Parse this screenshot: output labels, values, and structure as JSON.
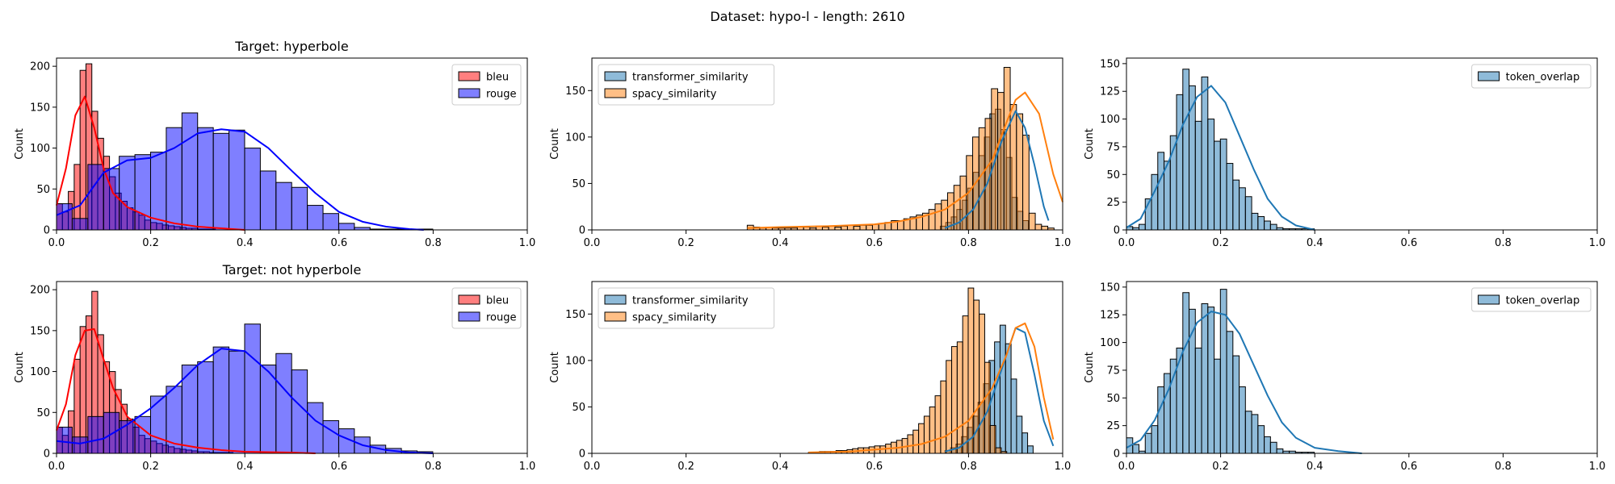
{
  "figure": {
    "suptitle": "Dataset: hypo-l - length: 2610"
  },
  "colors": {
    "bleu": "#ff0000",
    "rouge": "#0000ff",
    "transformer_similarity": "#1f77b4",
    "spacy_similarity": "#ff7f0e",
    "token_overlap": "#1f77b4"
  },
  "chart_data": [
    {
      "type": "histogram",
      "title": "Target: hyperbole",
      "ylabel": "Count",
      "xlim": [
        0,
        1
      ],
      "ylim": [
        0,
        210
      ],
      "xticks": [
        "0.0",
        "0.2",
        "0.4",
        "0.6",
        "0.8",
        "1.0"
      ],
      "yticks": [
        "0",
        "50",
        "100",
        "150",
        "200"
      ],
      "legend_position": "top-right",
      "kde": true,
      "series": [
        {
          "name": "bleu",
          "color_key": "bleu",
          "bin_start": 0.0,
          "bin_width": 0.0125,
          "counts": [
            32,
            22,
            47,
            80,
            195,
            203,
            145,
            112,
            90,
            65,
            45,
            35,
            27,
            22,
            18,
            12,
            9,
            8,
            6,
            5,
            4,
            3,
            2,
            2,
            1,
            1,
            1,
            0,
            0,
            0
          ],
          "kde_x": [
            0.0,
            0.02,
            0.04,
            0.06,
            0.08,
            0.1,
            0.12,
            0.15,
            0.2,
            0.25,
            0.3,
            0.35,
            0.4
          ],
          "kde_y": [
            30,
            75,
            140,
            163,
            125,
            75,
            45,
            28,
            15,
            8,
            4,
            2,
            0
          ]
        },
        {
          "name": "rouge",
          "color_key": "rouge",
          "bin_start": 0.0,
          "bin_width": 0.0333,
          "counts": [
            32,
            14,
            80,
            75,
            90,
            92,
            95,
            125,
            143,
            125,
            118,
            122,
            100,
            72,
            58,
            52,
            30,
            20,
            8,
            3,
            1,
            1,
            1,
            1
          ],
          "kde_x": [
            0.0,
            0.05,
            0.1,
            0.15,
            0.2,
            0.25,
            0.3,
            0.35,
            0.4,
            0.45,
            0.5,
            0.55,
            0.6,
            0.65,
            0.7,
            0.75,
            0.78
          ],
          "kde_y": [
            18,
            30,
            70,
            85,
            88,
            100,
            118,
            123,
            120,
            100,
            72,
            45,
            22,
            10,
            4,
            1,
            0
          ]
        }
      ]
    },
    {
      "type": "histogram",
      "title": "",
      "ylabel": "Count",
      "xlim": [
        0,
        1
      ],
      "ylim": [
        0,
        185
      ],
      "xticks": [
        "0.0",
        "0.2",
        "0.4",
        "0.6",
        "0.8",
        "1.0"
      ],
      "yticks": [
        "0",
        "50",
        "100",
        "150"
      ],
      "legend_position": "top-left",
      "kde": true,
      "series": [
        {
          "name": "transformer_similarity",
          "color_key": "transformer_similarity",
          "bin_start": 0.74,
          "bin_width": 0.0117,
          "counts": [
            4,
            8,
            14,
            22,
            32,
            45,
            62,
            80,
            100,
            125,
            130,
            108,
            78,
            35,
            20,
            10
          ],
          "kde_x": [
            0.75,
            0.78,
            0.81,
            0.84,
            0.87,
            0.9,
            0.92,
            0.94,
            0.96,
            0.97
          ],
          "kde_y": [
            2,
            8,
            22,
            50,
            95,
            128,
            110,
            70,
            25,
            10
          ]
        },
        {
          "name": "spacy_similarity",
          "color_key": "spacy_similarity",
          "bin_start": 0.33,
          "bin_width": 0.0133,
          "counts": [
            5,
            3,
            2,
            3,
            2,
            2,
            2,
            2,
            3,
            3,
            2,
            4,
            3,
            4,
            3,
            4,
            5,
            4,
            5,
            5,
            6,
            7,
            8,
            10,
            10,
            12,
            14,
            16,
            18,
            22,
            28,
            32,
            40,
            48,
            58,
            80,
            100,
            110,
            120,
            152,
            148,
            175,
            135,
            125,
            102,
            18,
            6,
            4,
            2
          ],
          "kde_x": [
            0.33,
            0.4,
            0.5,
            0.6,
            0.65,
            0.7,
            0.75,
            0.8,
            0.85,
            0.88,
            0.9,
            0.92,
            0.95,
            0.98,
            1.0
          ],
          "kde_y": [
            2,
            3,
            4,
            6,
            9,
            14,
            22,
            40,
            75,
            115,
            140,
            148,
            125,
            60,
            30
          ]
        }
      ]
    },
    {
      "type": "histogram",
      "title": "",
      "ylabel": "Count",
      "xlim": [
        0,
        1
      ],
      "ylim": [
        0,
        155
      ],
      "xticks": [
        "0.0",
        "0.2",
        "0.4",
        "0.6",
        "0.8",
        "1.0"
      ],
      "yticks": [
        "0",
        "25",
        "50",
        "75",
        "100",
        "125",
        "150"
      ],
      "legend_position": "top-right",
      "kde": true,
      "series": [
        {
          "name": "token_overlap",
          "color_key": "token_overlap",
          "bin_start": 0.0,
          "bin_width": 0.0133,
          "counts": [
            3,
            2,
            5,
            28,
            50,
            70,
            62,
            85,
            122,
            145,
            130,
            98,
            138,
            100,
            80,
            82,
            60,
            45,
            38,
            30,
            15,
            12,
            8,
            5,
            2,
            1,
            1,
            1,
            1,
            1
          ],
          "kde_x": [
            0.0,
            0.03,
            0.06,
            0.09,
            0.12,
            0.15,
            0.18,
            0.21,
            0.24,
            0.27,
            0.3,
            0.33,
            0.36,
            0.4
          ],
          "kde_y": [
            2,
            10,
            35,
            62,
            95,
            120,
            130,
            115,
            85,
            55,
            28,
            12,
            4,
            0
          ]
        }
      ]
    },
    {
      "type": "histogram",
      "title": "Target: not hyperbole",
      "ylabel": "Count",
      "xlim": [
        0,
        1
      ],
      "ylim": [
        0,
        210
      ],
      "xticks": [
        "0.0",
        "0.2",
        "0.4",
        "0.6",
        "0.8",
        "1.0"
      ],
      "yticks": [
        "0",
        "50",
        "100",
        "150",
        "200"
      ],
      "legend_position": "top-right",
      "kde": true,
      "series": [
        {
          "name": "bleu",
          "color_key": "bleu",
          "bin_start": 0.0,
          "bin_width": 0.0125,
          "counts": [
            32,
            22,
            52,
            115,
            155,
            168,
            198,
            145,
            112,
            100,
            78,
            60,
            42,
            32,
            22,
            18,
            15,
            12,
            10,
            8,
            6,
            5,
            4,
            3,
            2,
            2,
            1,
            1,
            1,
            1
          ],
          "kde_x": [
            0.0,
            0.02,
            0.04,
            0.06,
            0.08,
            0.1,
            0.12,
            0.15,
            0.2,
            0.25,
            0.3,
            0.35,
            0.4,
            0.5,
            0.55
          ],
          "kde_y": [
            28,
            60,
            120,
            150,
            152,
            115,
            80,
            45,
            22,
            12,
            7,
            4,
            2,
            1,
            0
          ]
        },
        {
          "name": "rouge",
          "color_key": "rouge",
          "bin_start": 0.0,
          "bin_width": 0.0333,
          "counts": [
            32,
            20,
            45,
            50,
            40,
            45,
            70,
            82,
            108,
            112,
            130,
            125,
            158,
            108,
            122,
            102,
            62,
            40,
            30,
            20,
            10,
            6,
            3,
            2
          ],
          "kde_x": [
            0.0,
            0.05,
            0.1,
            0.15,
            0.2,
            0.25,
            0.3,
            0.35,
            0.4,
            0.45,
            0.5,
            0.55,
            0.6,
            0.65,
            0.7,
            0.75,
            0.8
          ],
          "kde_y": [
            15,
            12,
            18,
            35,
            55,
            80,
            108,
            128,
            125,
            100,
            68,
            40,
            22,
            10,
            4,
            1,
            0
          ]
        }
      ]
    },
    {
      "type": "histogram",
      "title": "",
      "ylabel": "Count",
      "xlim": [
        0,
        1
      ],
      "ylim": [
        0,
        185
      ],
      "xticks": [
        "0.0",
        "0.2",
        "0.4",
        "0.6",
        "0.8",
        "1.0"
      ],
      "yticks": [
        "0",
        "50",
        "100",
        "150"
      ],
      "legend_position": "top-left",
      "kde": true,
      "series": [
        {
          "name": "transformer_similarity",
          "color_key": "transformer_similarity",
          "bin_start": 0.75,
          "bin_width": 0.0117,
          "counts": [
            3,
            6,
            10,
            18,
            28,
            40,
            55,
            75,
            100,
            120,
            138,
            118,
            80,
            40,
            22,
            8
          ],
          "kde_x": [
            0.75,
            0.78,
            0.81,
            0.84,
            0.87,
            0.9,
            0.92,
            0.94,
            0.96,
            0.98
          ],
          "kde_y": [
            2,
            6,
            18,
            45,
            90,
            135,
            130,
            85,
            35,
            8
          ]
        },
        {
          "name": "spacy_similarity",
          "color_key": "spacy_similarity",
          "bin_start": 0.46,
          "bin_width": 0.0117,
          "counts": [
            1,
            1,
            2,
            2,
            2,
            3,
            3,
            4,
            5,
            6,
            6,
            7,
            8,
            8,
            10,
            12,
            14,
            16,
            20,
            25,
            32,
            40,
            50,
            62,
            78,
            100,
            115,
            120,
            148,
            178,
            165,
            150,
            98,
            30,
            6,
            2
          ],
          "kde_x": [
            0.46,
            0.55,
            0.6,
            0.65,
            0.7,
            0.75,
            0.8,
            0.85,
            0.88,
            0.9,
            0.92,
            0.94,
            0.96,
            0.98
          ],
          "kde_y": [
            1,
            2,
            4,
            6,
            10,
            18,
            35,
            70,
            105,
            135,
            140,
            115,
            60,
            15
          ]
        }
      ]
    },
    {
      "type": "histogram",
      "title": "",
      "ylabel": "Count",
      "xlim": [
        0,
        1
      ],
      "ylim": [
        0,
        155
      ],
      "xticks": [
        "0.0",
        "0.2",
        "0.4",
        "0.6",
        "0.8",
        "1.0"
      ],
      "yticks": [
        "0",
        "25",
        "50",
        "75",
        "100",
        "125",
        "150"
      ],
      "legend_position": "top-right",
      "kde": true,
      "series": [
        {
          "name": "token_overlap",
          "color_key": "token_overlap",
          "bin_start": 0.0,
          "bin_width": 0.0133,
          "counts": [
            14,
            8,
            2,
            18,
            25,
            60,
            72,
            85,
            95,
            145,
            130,
            95,
            135,
            132,
            85,
            148,
            110,
            88,
            60,
            38,
            35,
            25,
            15,
            10,
            4,
            2,
            2,
            1,
            1,
            1
          ],
          "kde_x": [
            0.0,
            0.03,
            0.06,
            0.09,
            0.12,
            0.15,
            0.18,
            0.21,
            0.24,
            0.27,
            0.3,
            0.33,
            0.36,
            0.4,
            0.45,
            0.5
          ],
          "kde_y": [
            5,
            12,
            30,
            58,
            92,
            118,
            128,
            125,
            108,
            80,
            52,
            28,
            14,
            5,
            2,
            0
          ]
        }
      ]
    }
  ]
}
